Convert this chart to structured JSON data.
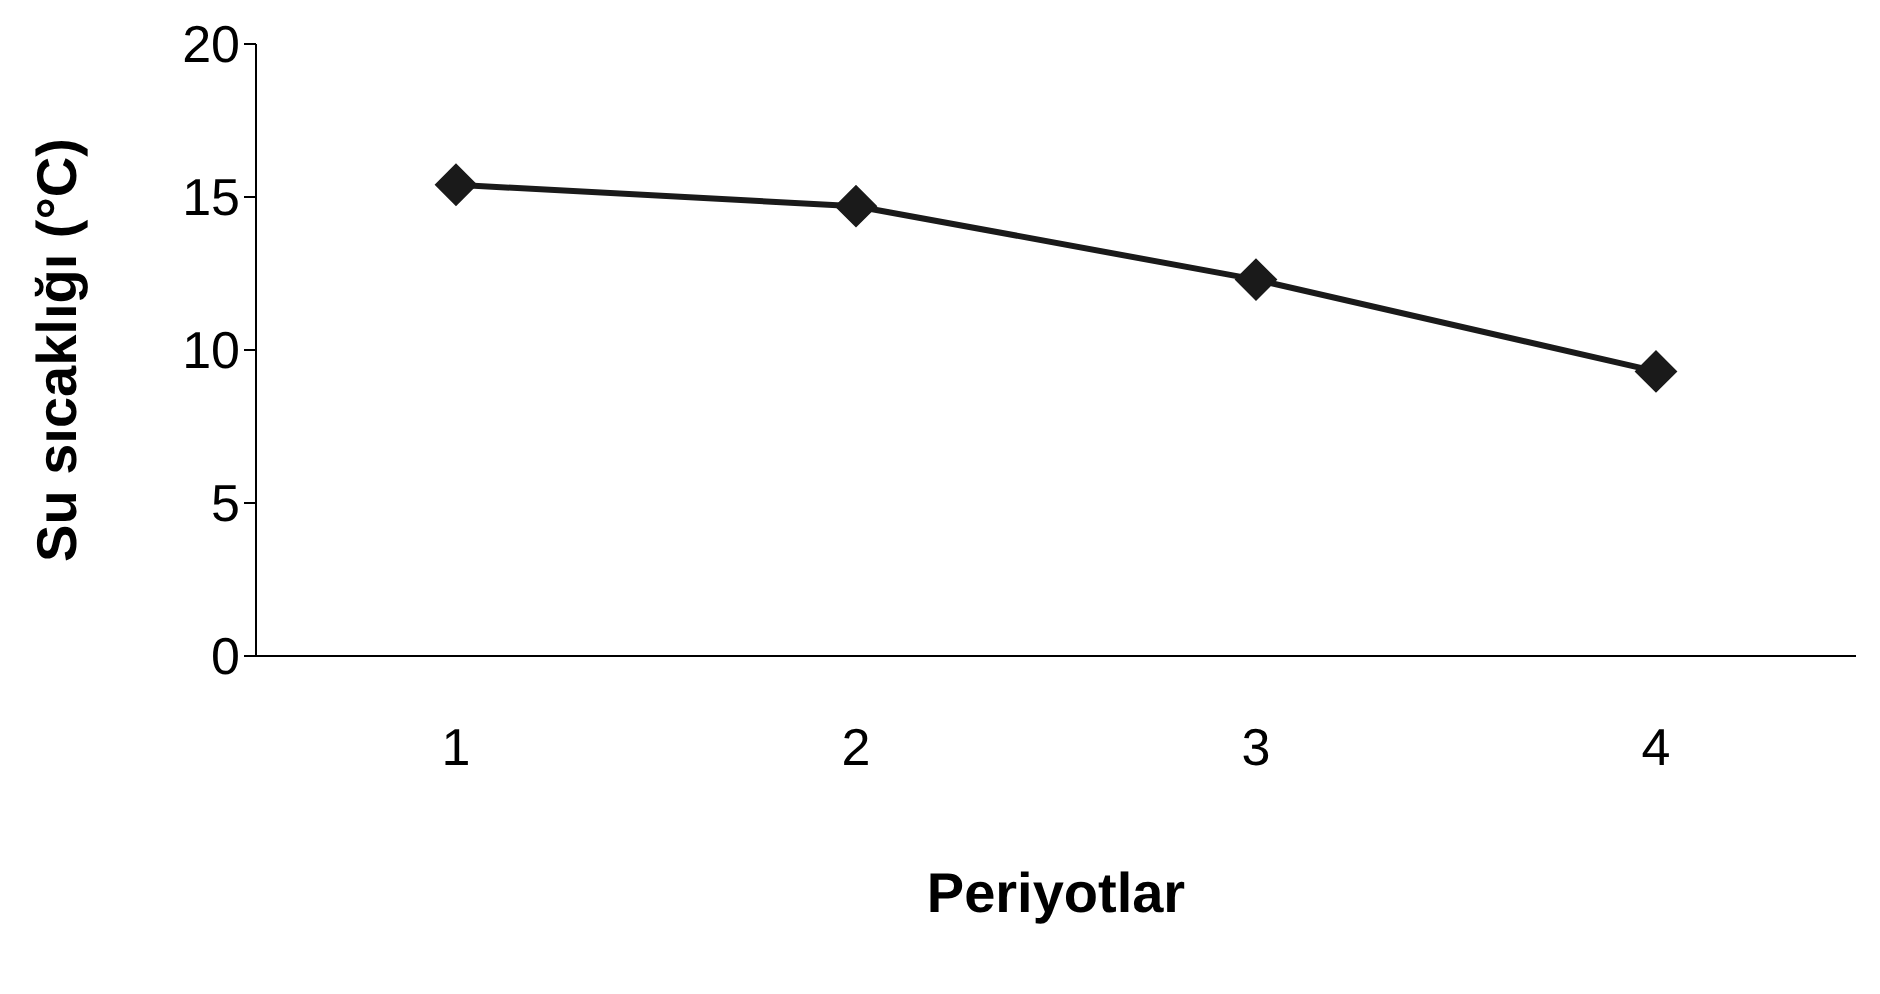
{
  "chart_data": {
    "type": "line",
    "xlabel": "Periyotlar",
    "ylabel": "Su sıcaklığı (°C)",
    "categories": [
      "1",
      "2",
      "3",
      "4"
    ],
    "series": [
      {
        "color": "#1a1a1a",
        "values": [
          15.4,
          14.7,
          12.3,
          9.3
        ]
      }
    ],
    "ylim": [
      0,
      20
    ],
    "yticks": [
      0,
      5,
      10,
      15,
      20
    ],
    "grid": false,
    "legend": false,
    "marker": "diamond",
    "line_style": "solid"
  }
}
